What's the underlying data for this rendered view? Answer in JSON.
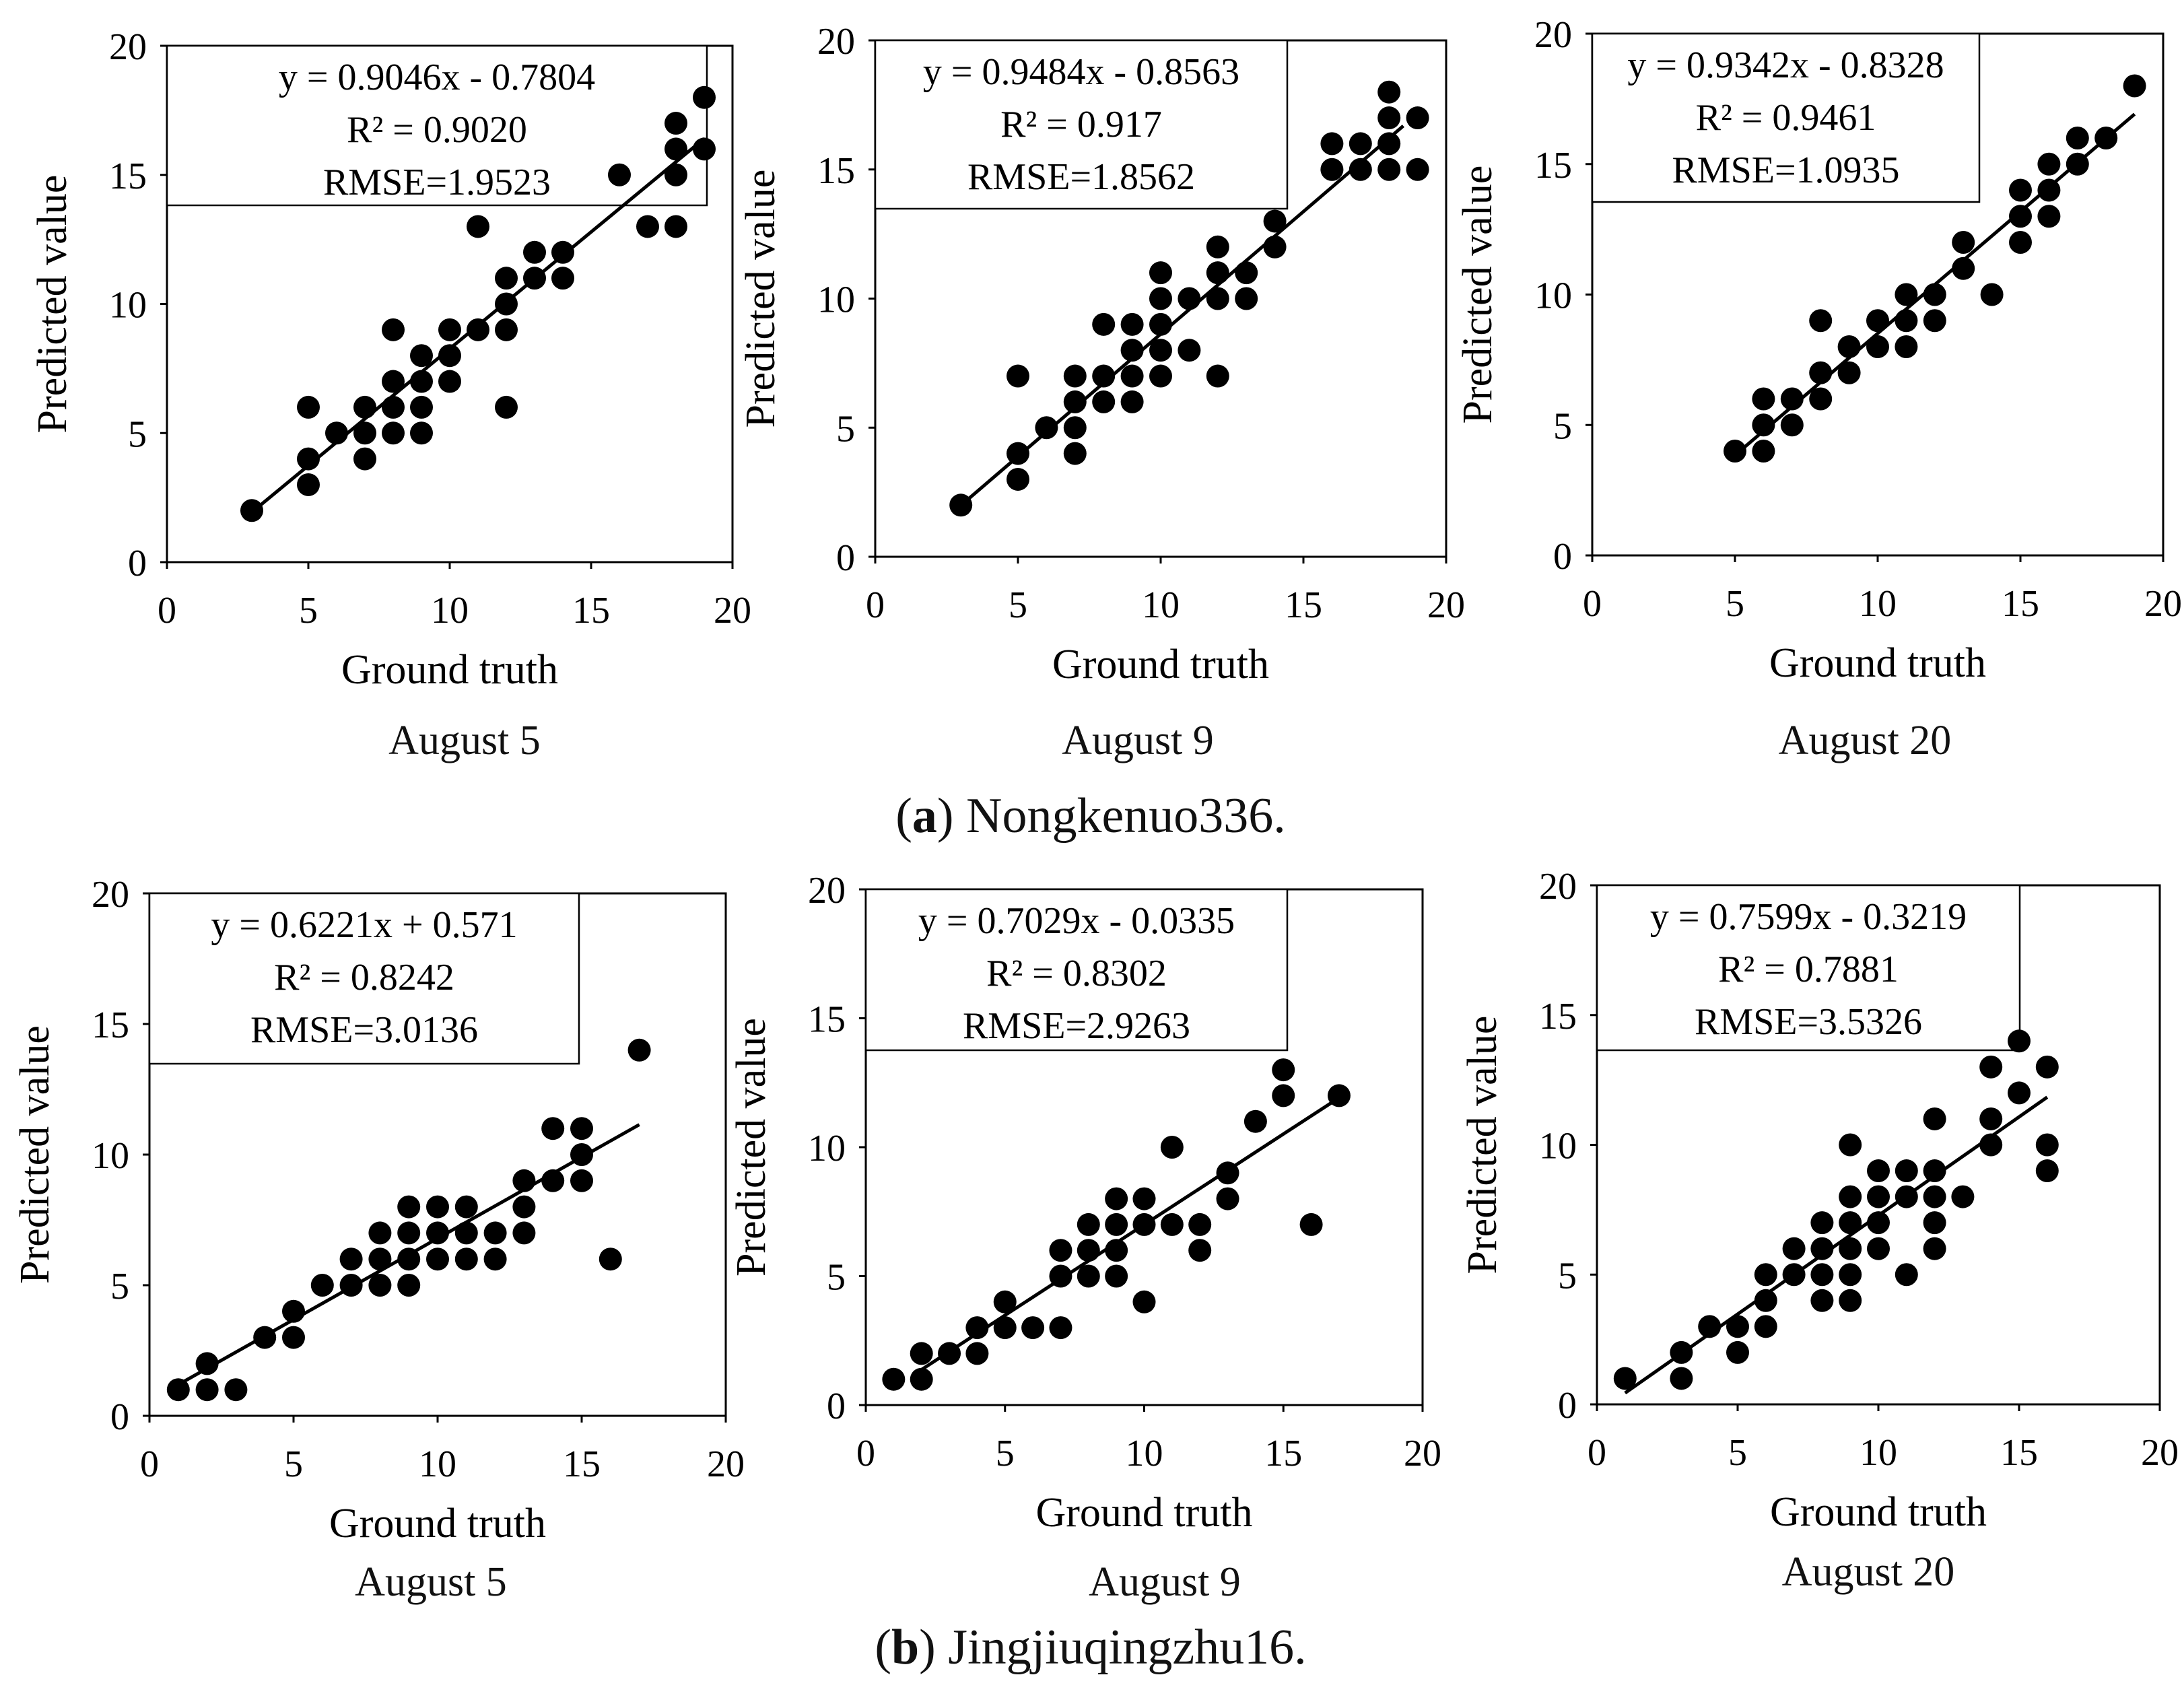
{
  "figure": {
    "row_captions": [
      {
        "open": "(",
        "tag": "a",
        "rest": ") Nongkenuo336."
      },
      {
        "open": "(",
        "tag": "b",
        "rest": ") Jingjiuqingzhu16."
      }
    ]
  },
  "chart_data": [
    {
      "type": "scatter",
      "row": "a",
      "caption": "August 5",
      "xlabel": "Ground truth",
      "ylabel": "Predicted value",
      "xlim": [
        0,
        20
      ],
      "ylim": [
        0,
        20
      ],
      "xticks": [
        0,
        5,
        10,
        15,
        20
      ],
      "yticks": [
        0,
        5,
        10,
        15,
        20
      ],
      "annotation": [
        "y = 0.9046x - 0.7804",
        "R² = 0.9020",
        "RMSE=1.9523"
      ],
      "fit": {
        "slope": 0.9046,
        "intercept": -0.7804,
        "x_range": [
          3,
          19
        ]
      },
      "points": [
        [
          3,
          2
        ],
        [
          5,
          6
        ],
        [
          5,
          4
        ],
        [
          5,
          3
        ],
        [
          6,
          5
        ],
        [
          7,
          6
        ],
        [
          7,
          5
        ],
        [
          7,
          4
        ],
        [
          8,
          9
        ],
        [
          8,
          7
        ],
        [
          8,
          6
        ],
        [
          8,
          5
        ],
        [
          9,
          8
        ],
        [
          9,
          7
        ],
        [
          9,
          6
        ],
        [
          9,
          5
        ],
        [
          10,
          9
        ],
        [
          10,
          8
        ],
        [
          10,
          7
        ],
        [
          11,
          13
        ],
        [
          11,
          9
        ],
        [
          12,
          11
        ],
        [
          12,
          10
        ],
        [
          12,
          9
        ],
        [
          12,
          6
        ],
        [
          13,
          12
        ],
        [
          13,
          11
        ],
        [
          14,
          12
        ],
        [
          14,
          11
        ],
        [
          16,
          15
        ],
        [
          17,
          13
        ],
        [
          18,
          17
        ],
        [
          18,
          16
        ],
        [
          18,
          15
        ],
        [
          18,
          13
        ],
        [
          19,
          18
        ],
        [
          19,
          16
        ]
      ]
    },
    {
      "type": "scatter",
      "row": "a",
      "caption": "August 9",
      "xlabel": "Ground truth",
      "ylabel": "Predicted value",
      "xlim": [
        0,
        20
      ],
      "ylim": [
        0,
        20
      ],
      "xticks": [
        0,
        5,
        10,
        15,
        20
      ],
      "yticks": [
        0,
        5,
        10,
        15,
        20
      ],
      "annotation": [
        "y = 0.9484x - 0.8563",
        "R² = 0.917",
        "RMSE=1.8562"
      ],
      "fit": {
        "slope": 0.9484,
        "intercept": -0.8563,
        "x_range": [
          3,
          18.5
        ]
      },
      "points": [
        [
          3,
          2
        ],
        [
          5,
          7
        ],
        [
          5,
          4
        ],
        [
          5,
          3
        ],
        [
          6,
          5
        ],
        [
          7,
          7
        ],
        [
          7,
          6
        ],
        [
          7,
          5
        ],
        [
          7,
          4
        ],
        [
          8,
          9
        ],
        [
          8,
          7
        ],
        [
          8,
          6
        ],
        [
          9,
          9
        ],
        [
          9,
          8
        ],
        [
          9,
          7
        ],
        [
          9,
          6
        ],
        [
          10,
          11
        ],
        [
          10,
          10
        ],
        [
          10,
          9
        ],
        [
          10,
          8
        ],
        [
          10,
          7
        ],
        [
          11,
          10
        ],
        [
          11,
          8
        ],
        [
          12,
          12
        ],
        [
          12,
          11
        ],
        [
          12,
          10
        ],
        [
          12,
          7
        ],
        [
          13,
          11
        ],
        [
          13,
          10
        ],
        [
          14,
          13
        ],
        [
          14,
          12
        ],
        [
          16,
          16
        ],
        [
          16,
          15
        ],
        [
          17,
          16
        ],
        [
          17,
          15
        ],
        [
          18,
          18
        ],
        [
          18,
          17
        ],
        [
          18,
          16
        ],
        [
          18,
          15
        ],
        [
          19,
          17
        ],
        [
          19,
          15
        ]
      ]
    },
    {
      "type": "scatter",
      "row": "a",
      "caption": "August 20",
      "xlabel": "Ground truth",
      "ylabel": "Predicted value",
      "xlim": [
        0,
        20
      ],
      "ylim": [
        0,
        20
      ],
      "xticks": [
        0,
        5,
        10,
        15,
        20
      ],
      "yticks": [
        0,
        5,
        10,
        15,
        20
      ],
      "annotation": [
        "y = 0.9342x - 0.8328",
        "R² = 0.9461",
        "RMSE=1.0935"
      ],
      "fit": {
        "slope": 0.9342,
        "intercept": -0.8328,
        "x_range": [
          5,
          19
        ]
      },
      "points": [
        [
          5,
          4
        ],
        [
          6,
          6
        ],
        [
          6,
          5
        ],
        [
          6,
          4
        ],
        [
          7,
          6
        ],
        [
          7,
          5
        ],
        [
          8,
          9
        ],
        [
          8,
          7
        ],
        [
          8,
          6
        ],
        [
          9,
          8
        ],
        [
          9,
          7
        ],
        [
          10,
          9
        ],
        [
          10,
          8
        ],
        [
          11,
          10
        ],
        [
          11,
          9
        ],
        [
          11,
          8
        ],
        [
          12,
          10
        ],
        [
          12,
          9
        ],
        [
          13,
          12
        ],
        [
          13,
          11
        ],
        [
          14,
          10
        ],
        [
          15,
          14
        ],
        [
          15,
          13
        ],
        [
          15,
          12
        ],
        [
          16,
          15
        ],
        [
          16,
          14
        ],
        [
          16,
          13
        ],
        [
          17,
          16
        ],
        [
          17,
          15
        ],
        [
          18,
          16
        ],
        [
          19,
          18
        ]
      ]
    },
    {
      "type": "scatter",
      "row": "b",
      "caption": "August 5",
      "xlabel": "Ground truth",
      "ylabel": "Predicted value",
      "xlim": [
        0,
        20
      ],
      "ylim": [
        0,
        20
      ],
      "xticks": [
        0,
        5,
        10,
        15,
        20
      ],
      "yticks": [
        0,
        5,
        10,
        15,
        20
      ],
      "annotation": [
        "y = 0.6221x + 0.571",
        "R² = 0.8242",
        "RMSE=3.0136"
      ],
      "fit": {
        "slope": 0.6221,
        "intercept": 0.571,
        "x_range": [
          1,
          17
        ]
      },
      "points": [
        [
          1,
          1
        ],
        [
          2,
          2
        ],
        [
          2,
          1
        ],
        [
          3,
          1
        ],
        [
          4,
          3
        ],
        [
          5,
          4
        ],
        [
          5,
          3
        ],
        [
          6,
          5
        ],
        [
          7,
          6
        ],
        [
          7,
          5
        ],
        [
          8,
          7
        ],
        [
          8,
          6
        ],
        [
          8,
          5
        ],
        [
          9,
          8
        ],
        [
          9,
          7
        ],
        [
          9,
          6
        ],
        [
          9,
          5
        ],
        [
          10,
          8
        ],
        [
          10,
          7
        ],
        [
          10,
          6
        ],
        [
          11,
          8
        ],
        [
          11,
          7
        ],
        [
          11,
          6
        ],
        [
          12,
          7
        ],
        [
          12,
          6
        ],
        [
          13,
          9
        ],
        [
          13,
          8
        ],
        [
          13,
          7
        ],
        [
          14,
          11
        ],
        [
          14,
          9
        ],
        [
          15,
          11
        ],
        [
          15,
          10
        ],
        [
          15,
          9
        ],
        [
          16,
          6
        ],
        [
          17,
          14
        ]
      ]
    },
    {
      "type": "scatter",
      "row": "b",
      "caption": "August 9",
      "xlabel": "Ground truth",
      "ylabel": "Predicted value",
      "xlim": [
        0,
        20
      ],
      "ylim": [
        0,
        20
      ],
      "xticks": [
        0,
        5,
        10,
        15,
        20
      ],
      "yticks": [
        0,
        5,
        10,
        15,
        20
      ],
      "annotation": [
        "y = 0.7029x - 0.0335",
        "R² = 0.8302",
        "RMSE=2.9263"
      ],
      "fit": {
        "slope": 0.7029,
        "intercept": -0.0335,
        "x_range": [
          2,
          17
        ]
      },
      "points": [
        [
          1,
          1
        ],
        [
          2,
          2
        ],
        [
          2,
          1
        ],
        [
          3,
          2
        ],
        [
          4,
          3
        ],
        [
          4,
          2
        ],
        [
          5,
          4
        ],
        [
          5,
          3
        ],
        [
          6,
          3
        ],
        [
          7,
          6
        ],
        [
          7,
          5
        ],
        [
          7,
          3
        ],
        [
          8,
          7
        ],
        [
          8,
          6
        ],
        [
          8,
          5
        ],
        [
          9,
          8
        ],
        [
          9,
          7
        ],
        [
          9,
          6
        ],
        [
          9,
          5
        ],
        [
          10,
          8
        ],
        [
          10,
          7
        ],
        [
          10,
          4
        ],
        [
          11,
          10
        ],
        [
          11,
          7
        ],
        [
          12,
          7
        ],
        [
          12,
          6
        ],
        [
          13,
          9
        ],
        [
          13,
          8
        ],
        [
          14,
          11
        ],
        [
          15,
          13
        ],
        [
          15,
          12
        ],
        [
          16,
          7
        ],
        [
          17,
          12
        ]
      ]
    },
    {
      "type": "scatter",
      "row": "b",
      "caption": "August 20",
      "xlabel": "Ground truth",
      "ylabel": "Predicted value",
      "xlim": [
        0,
        20
      ],
      "ylim": [
        0,
        20
      ],
      "xticks": [
        0,
        5,
        10,
        15,
        20
      ],
      "yticks": [
        0,
        5,
        10,
        15,
        20
      ],
      "annotation": [
        "y = 0.7599x - 0.3219",
        "R² = 0.7881",
        "RMSE=3.5326"
      ],
      "fit": {
        "slope": 0.7599,
        "intercept": -0.3219,
        "x_range": [
          1,
          16
        ]
      },
      "points": [
        [
          1,
          1
        ],
        [
          3,
          2
        ],
        [
          3,
          1
        ],
        [
          4,
          3
        ],
        [
          5,
          3
        ],
        [
          5,
          2
        ],
        [
          6,
          5
        ],
        [
          6,
          4
        ],
        [
          6,
          3
        ],
        [
          7,
          6
        ],
        [
          7,
          5
        ],
        [
          8,
          7
        ],
        [
          8,
          6
        ],
        [
          8,
          5
        ],
        [
          8,
          4
        ],
        [
          9,
          10
        ],
        [
          9,
          8
        ],
        [
          9,
          7
        ],
        [
          9,
          6
        ],
        [
          9,
          5
        ],
        [
          9,
          4
        ],
        [
          10,
          9
        ],
        [
          10,
          8
        ],
        [
          10,
          7
        ],
        [
          10,
          6
        ],
        [
          11,
          9
        ],
        [
          11,
          8
        ],
        [
          11,
          5
        ],
        [
          12,
          11
        ],
        [
          12,
          9
        ],
        [
          12,
          8
        ],
        [
          12,
          7
        ],
        [
          12,
          6
        ],
        [
          13,
          8
        ],
        [
          14,
          13
        ],
        [
          14,
          11
        ],
        [
          14,
          10
        ],
        [
          15,
          14
        ],
        [
          15,
          12
        ],
        [
          16,
          13
        ],
        [
          16,
          10
        ],
        [
          16,
          9
        ]
      ]
    }
  ]
}
